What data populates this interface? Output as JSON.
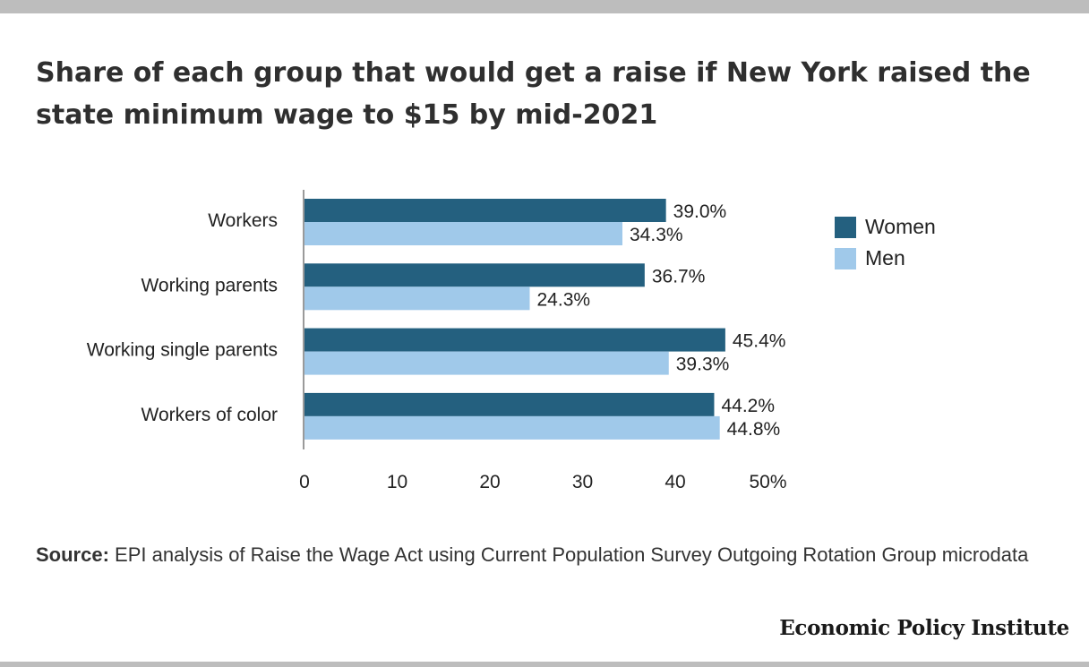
{
  "title": "Share of each group that would get a raise if New York raised the state minimum wage to $15 by mid-2021",
  "source": {
    "label": "Source:",
    "text": " EPI analysis of Raise the Wage Act using Current Population Survey Outgoing Rotation Group microdata"
  },
  "logo": "Economic Policy Institute",
  "colors": {
    "women": "#24607f",
    "men": "#a0c9ea",
    "axis": "#9a9a9a",
    "bars_top": "#bdbdbd"
  },
  "legend": {
    "position": "right",
    "items": [
      {
        "label": "Women",
        "color": "#24607f"
      },
      {
        "label": "Men",
        "color": "#a0c9ea"
      }
    ]
  },
  "chart_data": {
    "type": "bar",
    "orientation": "horizontal",
    "categories": [
      "Workers",
      "Working parents",
      "Working single parents",
      "Workers of color"
    ],
    "series": [
      {
        "name": "Women",
        "values": [
          39.0,
          36.7,
          45.4,
          44.2
        ],
        "labels": [
          "39.0%",
          "36.7%",
          "45.4%",
          "44.2%"
        ]
      },
      {
        "name": "Men",
        "values": [
          34.3,
          24.3,
          39.3,
          44.8
        ],
        "labels": [
          "34.3%",
          "24.3%",
          "39.3%",
          "44.8%"
        ]
      }
    ],
    "xlim": [
      0,
      50
    ],
    "xticks": [
      "0",
      "10",
      "20",
      "30",
      "40",
      "50%"
    ],
    "grid": false
  }
}
